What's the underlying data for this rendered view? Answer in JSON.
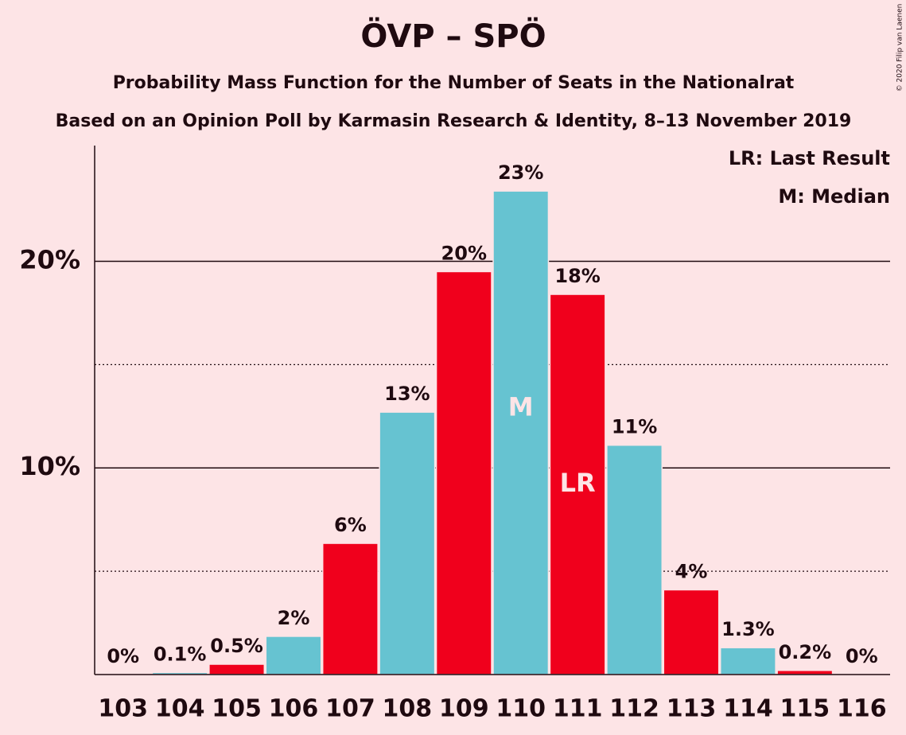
{
  "chart_data": {
    "type": "bar",
    "title": "ÖVP – SPÖ",
    "subtitle": "Probability Mass Function for the Number of Seats in the Nationalrat",
    "subtitle2": "Based on an Opinion Poll by Karmasin Research & Identity, 8–13 November 2019",
    "copyright": "© 2020 Filip van Laenen",
    "categories": [
      "103",
      "104",
      "105",
      "106",
      "107",
      "108",
      "109",
      "110",
      "111",
      "112",
      "113",
      "114",
      "115",
      "116"
    ],
    "values": [
      0,
      0.1,
      0.5,
      1.85,
      6.35,
      12.7,
      19.5,
      23.4,
      18.4,
      11.1,
      4.1,
      1.3,
      0.2,
      0
    ],
    "value_labels": [
      "0%",
      "0.1%",
      "0.5%",
      "2%",
      "6%",
      "13%",
      "20%",
      "23%",
      "18%",
      "11%",
      "4%",
      "1.3%",
      "0.2%",
      "0%"
    ],
    "colors": [
      "#f0001c",
      "#66c3d1",
      "#f0001c",
      "#66c3d1",
      "#f0001c",
      "#66c3d1",
      "#f0001c",
      "#66c3d1",
      "#f0001c",
      "#66c3d1",
      "#f0001c",
      "#66c3d1",
      "#f0001c",
      "#66c3d1"
    ],
    "bar_annotations": [
      {
        "category": "110",
        "label": "M"
      },
      {
        "category": "111",
        "label": "LR"
      }
    ],
    "legend": [
      "LR: Last Result",
      "M: Median"
    ],
    "ylim": [
      0,
      25.6
    ],
    "yticks": [
      {
        "value": 10,
        "label": "10%"
      },
      {
        "value": 20,
        "label": "20%"
      }
    ],
    "minor_yticks": [
      5,
      15
    ],
    "grid": true
  }
}
